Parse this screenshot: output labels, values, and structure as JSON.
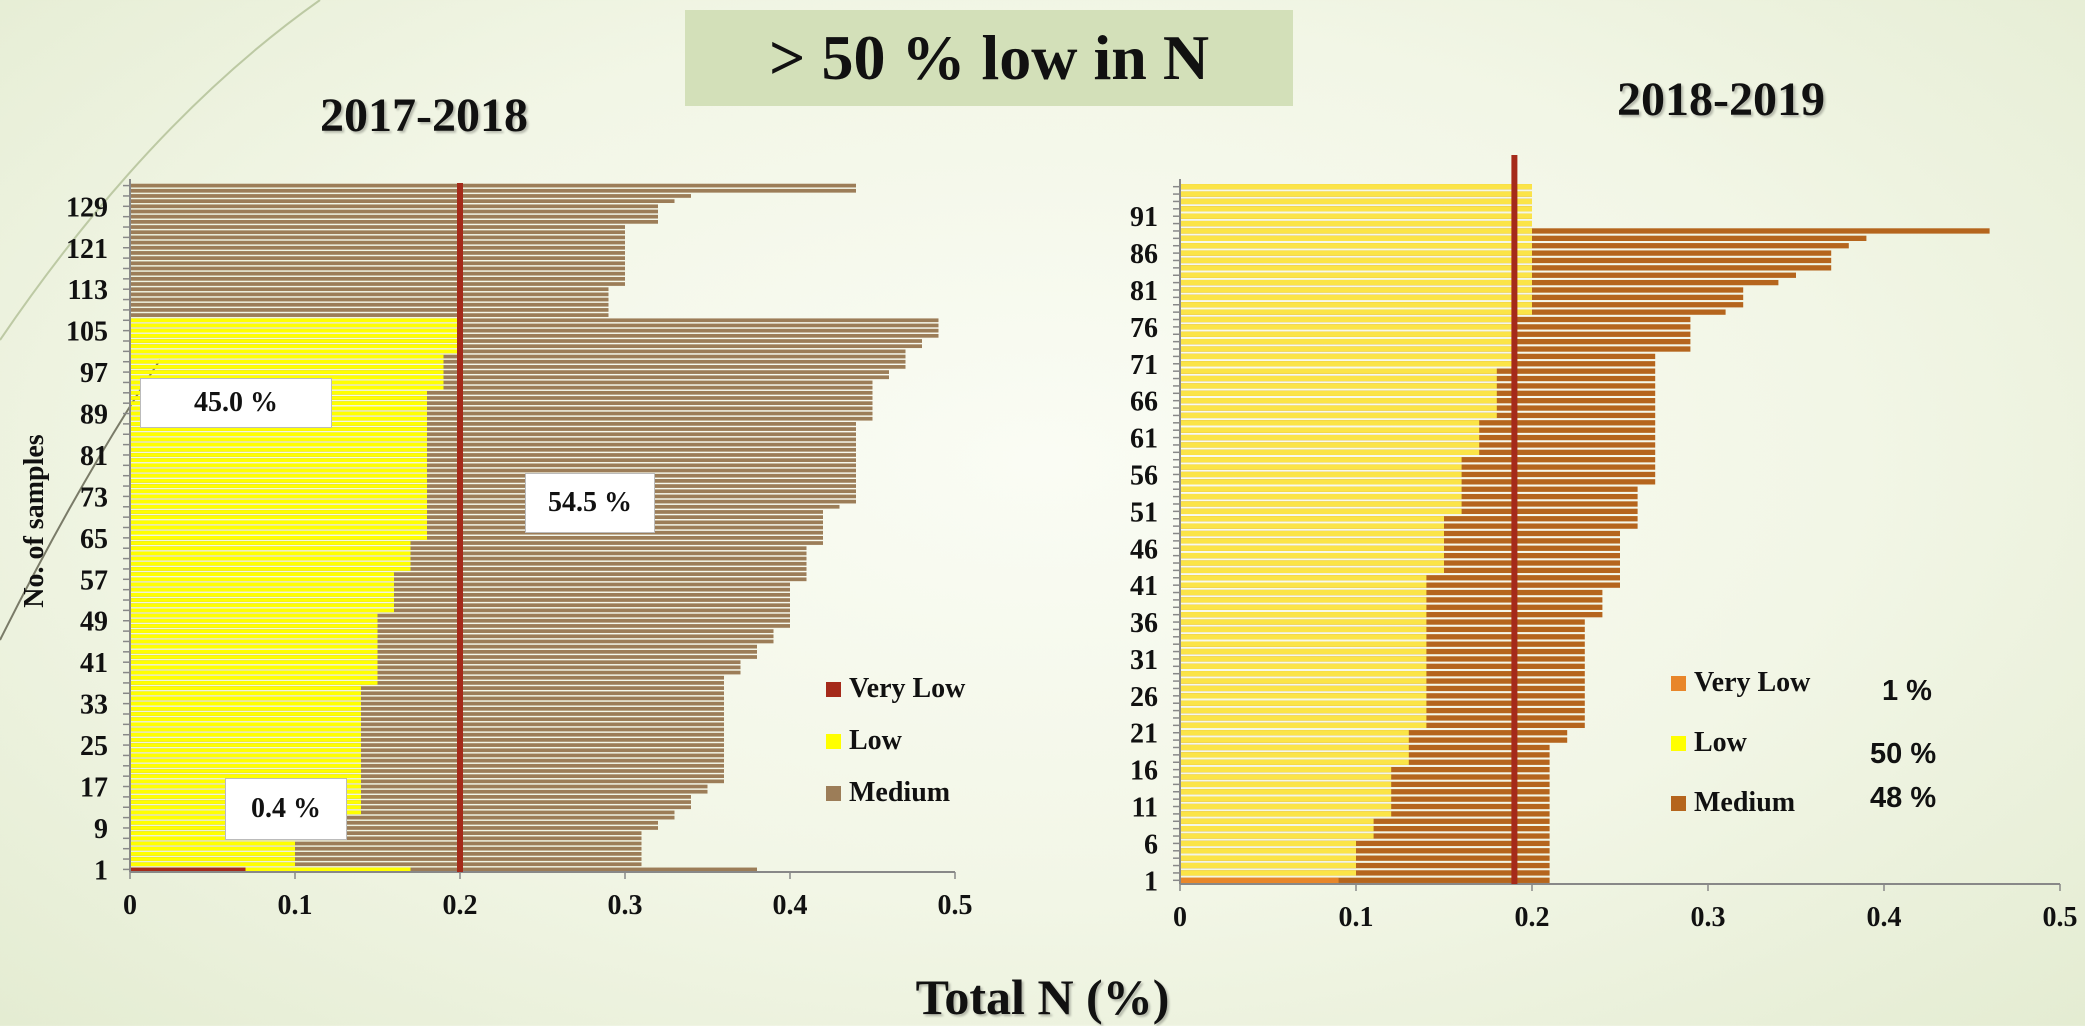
{
  "headline": "> 50 % low in N",
  "xlabel": "Total N (%)",
  "ylabel": "No. of samples",
  "chart_data": [
    {
      "type": "bar",
      "orientation": "horizontal",
      "title": "2017-2018",
      "n_samples": 133,
      "xlim": [
        0,
        0.5
      ],
      "xticks": [
        "0",
        "0.1",
        "0.2",
        "0.3",
        "0.4",
        "0.5"
      ],
      "ytick_labels": [
        "1",
        "9",
        "17",
        "25",
        "33",
        "41",
        "49",
        "57",
        "65",
        "73",
        "81",
        "89",
        "97",
        "105",
        "113",
        "121",
        "129"
      ],
      "threshold_line": 0.2,
      "total_n_segments": [
        {
          "from": 1,
          "to": 1,
          "value": 0.38
        },
        {
          "from": 2,
          "to": 8,
          "value": 0.31
        },
        {
          "from": 9,
          "to": 10,
          "value": 0.32
        },
        {
          "from": 11,
          "to": 12,
          "value": 0.33
        },
        {
          "from": 13,
          "to": 15,
          "value": 0.34
        },
        {
          "from": 16,
          "to": 17,
          "value": 0.35
        },
        {
          "from": 18,
          "to": 38,
          "value": 0.36
        },
        {
          "from": 39,
          "to": 41,
          "value": 0.37
        },
        {
          "from": 42,
          "to": 44,
          "value": 0.38
        },
        {
          "from": 45,
          "to": 47,
          "value": 0.39
        },
        {
          "from": 48,
          "to": 56,
          "value": 0.4
        },
        {
          "from": 57,
          "to": 63,
          "value": 0.41
        },
        {
          "from": 64,
          "to": 70,
          "value": 0.42
        },
        {
          "from": 71,
          "to": 71,
          "value": 0.43
        },
        {
          "from": 72,
          "to": 87,
          "value": 0.44
        },
        {
          "from": 88,
          "to": 95,
          "value": 0.45
        },
        {
          "from": 96,
          "to": 97,
          "value": 0.46
        },
        {
          "from": 98,
          "to": 101,
          "value": 0.47
        },
        {
          "from": 102,
          "to": 103,
          "value": 0.48
        },
        {
          "from": 104,
          "to": 107,
          "value": 0.49
        },
        {
          "from": 108,
          "to": 113,
          "value": 0.29
        },
        {
          "from": 114,
          "to": 125,
          "value": 0.3
        },
        {
          "from": 126,
          "to": 129,
          "value": 0.32
        },
        {
          "from": 130,
          "to": 130,
          "value": 0.33
        },
        {
          "from": 131,
          "to": 131,
          "value": 0.34
        },
        {
          "from": 132,
          "to": 133,
          "value": 0.44
        }
      ],
      "low_segments": [
        {
          "from": 1,
          "to": 1,
          "value": 0.17
        },
        {
          "from": 2,
          "to": 11,
          "value": 0.1
        },
        {
          "from": 12,
          "to": 36,
          "value": 0.14
        },
        {
          "from": 37,
          "to": 50,
          "value": 0.15
        },
        {
          "from": 51,
          "to": 58,
          "value": 0.16
        },
        {
          "from": 59,
          "to": 64,
          "value": 0.17
        },
        {
          "from": 65,
          "to": 67,
          "value": 0.18
        },
        {
          "from": 68,
          "to": 93,
          "value": 0.18
        },
        {
          "from": 94,
          "to": 100,
          "value": 0.19
        },
        {
          "from": 101,
          "to": 107,
          "value": 0.2
        }
      ],
      "very_low_segments": [
        {
          "from": 1,
          "to": 1,
          "value": 0.07
        }
      ],
      "annotations": [
        "45.0 %",
        "54.5 %",
        "0.4 %"
      ],
      "legend": {
        "position": "bottom-right",
        "items": [
          {
            "label": "Very Low",
            "color": "#a52a1a"
          },
          {
            "label": "Low",
            "color": "#ffff00"
          },
          {
            "label": "Medium",
            "color": "#9c7d58"
          }
        ]
      }
    },
    {
      "type": "bar",
      "orientation": "horizontal",
      "title": "2018-2019",
      "n_samples": 95,
      "xlim": [
        0,
        0.5
      ],
      "xticks": [
        "0",
        "0.1",
        "0.2",
        "0.3",
        "0.4",
        "0.5"
      ],
      "ytick_labels": [
        "1",
        "6",
        "11",
        "16",
        "21",
        "26",
        "31",
        "36",
        "41",
        "46",
        "51",
        "56",
        "61",
        "66",
        "71",
        "76",
        "81",
        "86",
        "91"
      ],
      "threshold_line": 0.19,
      "total_n_segments": [
        {
          "from": 1,
          "to": 19,
          "value": 0.21
        },
        {
          "from": 20,
          "to": 21,
          "value": 0.22
        },
        {
          "from": 22,
          "to": 36,
          "value": 0.23
        },
        {
          "from": 37,
          "to": 40,
          "value": 0.24
        },
        {
          "from": 41,
          "to": 48,
          "value": 0.25
        },
        {
          "from": 49,
          "to": 54,
          "value": 0.26
        },
        {
          "from": 55,
          "to": 72,
          "value": 0.27
        },
        {
          "from": 73,
          "to": 77,
          "value": 0.29
        },
        {
          "from": 78,
          "to": 78,
          "value": 0.31
        },
        {
          "from": 79,
          "to": 81,
          "value": 0.32
        },
        {
          "from": 82,
          "to": 82,
          "value": 0.34
        },
        {
          "from": 83,
          "to": 83,
          "value": 0.35
        },
        {
          "from": 84,
          "to": 86,
          "value": 0.37
        },
        {
          "from": 87,
          "to": 87,
          "value": 0.38
        },
        {
          "from": 88,
          "to": 88,
          "value": 0.39
        },
        {
          "from": 89,
          "to": 89,
          "value": 0.46
        },
        {
          "from": 90,
          "to": 95,
          "value": 0.2
        }
      ],
      "low_segments": [
        {
          "from": 1,
          "to": 1,
          "value": 0.09
        },
        {
          "from": 2,
          "to": 6,
          "value": 0.1
        },
        {
          "from": 7,
          "to": 9,
          "value": 0.11
        },
        {
          "from": 10,
          "to": 16,
          "value": 0.12
        },
        {
          "from": 17,
          "to": 21,
          "value": 0.13
        },
        {
          "from": 22,
          "to": 42,
          "value": 0.14
        },
        {
          "from": 43,
          "to": 50,
          "value": 0.15
        },
        {
          "from": 51,
          "to": 58,
          "value": 0.16
        },
        {
          "from": 59,
          "to": 63,
          "value": 0.17
        },
        {
          "from": 64,
          "to": 70,
          "value": 0.18
        },
        {
          "from": 71,
          "to": 77,
          "value": 0.19
        },
        {
          "from": 78,
          "to": 88,
          "value": 0.2
        },
        {
          "from": 89,
          "to": 89,
          "value": 0.2
        },
        {
          "from": 90,
          "to": 95,
          "value": 0.2
        }
      ],
      "very_low_segments": [
        {
          "from": 1,
          "to": 1,
          "value": 0.09
        }
      ],
      "legend": {
        "position": "bottom-right",
        "items": [
          {
            "label": "Very Low",
            "color": "#e8862a",
            "pct": "1 %"
          },
          {
            "label": "Low",
            "color": "#ffff00",
            "pct": "50 %"
          },
          {
            "label": "Medium",
            "color": "#b5651d",
            "pct": "48 %"
          }
        ]
      }
    }
  ]
}
